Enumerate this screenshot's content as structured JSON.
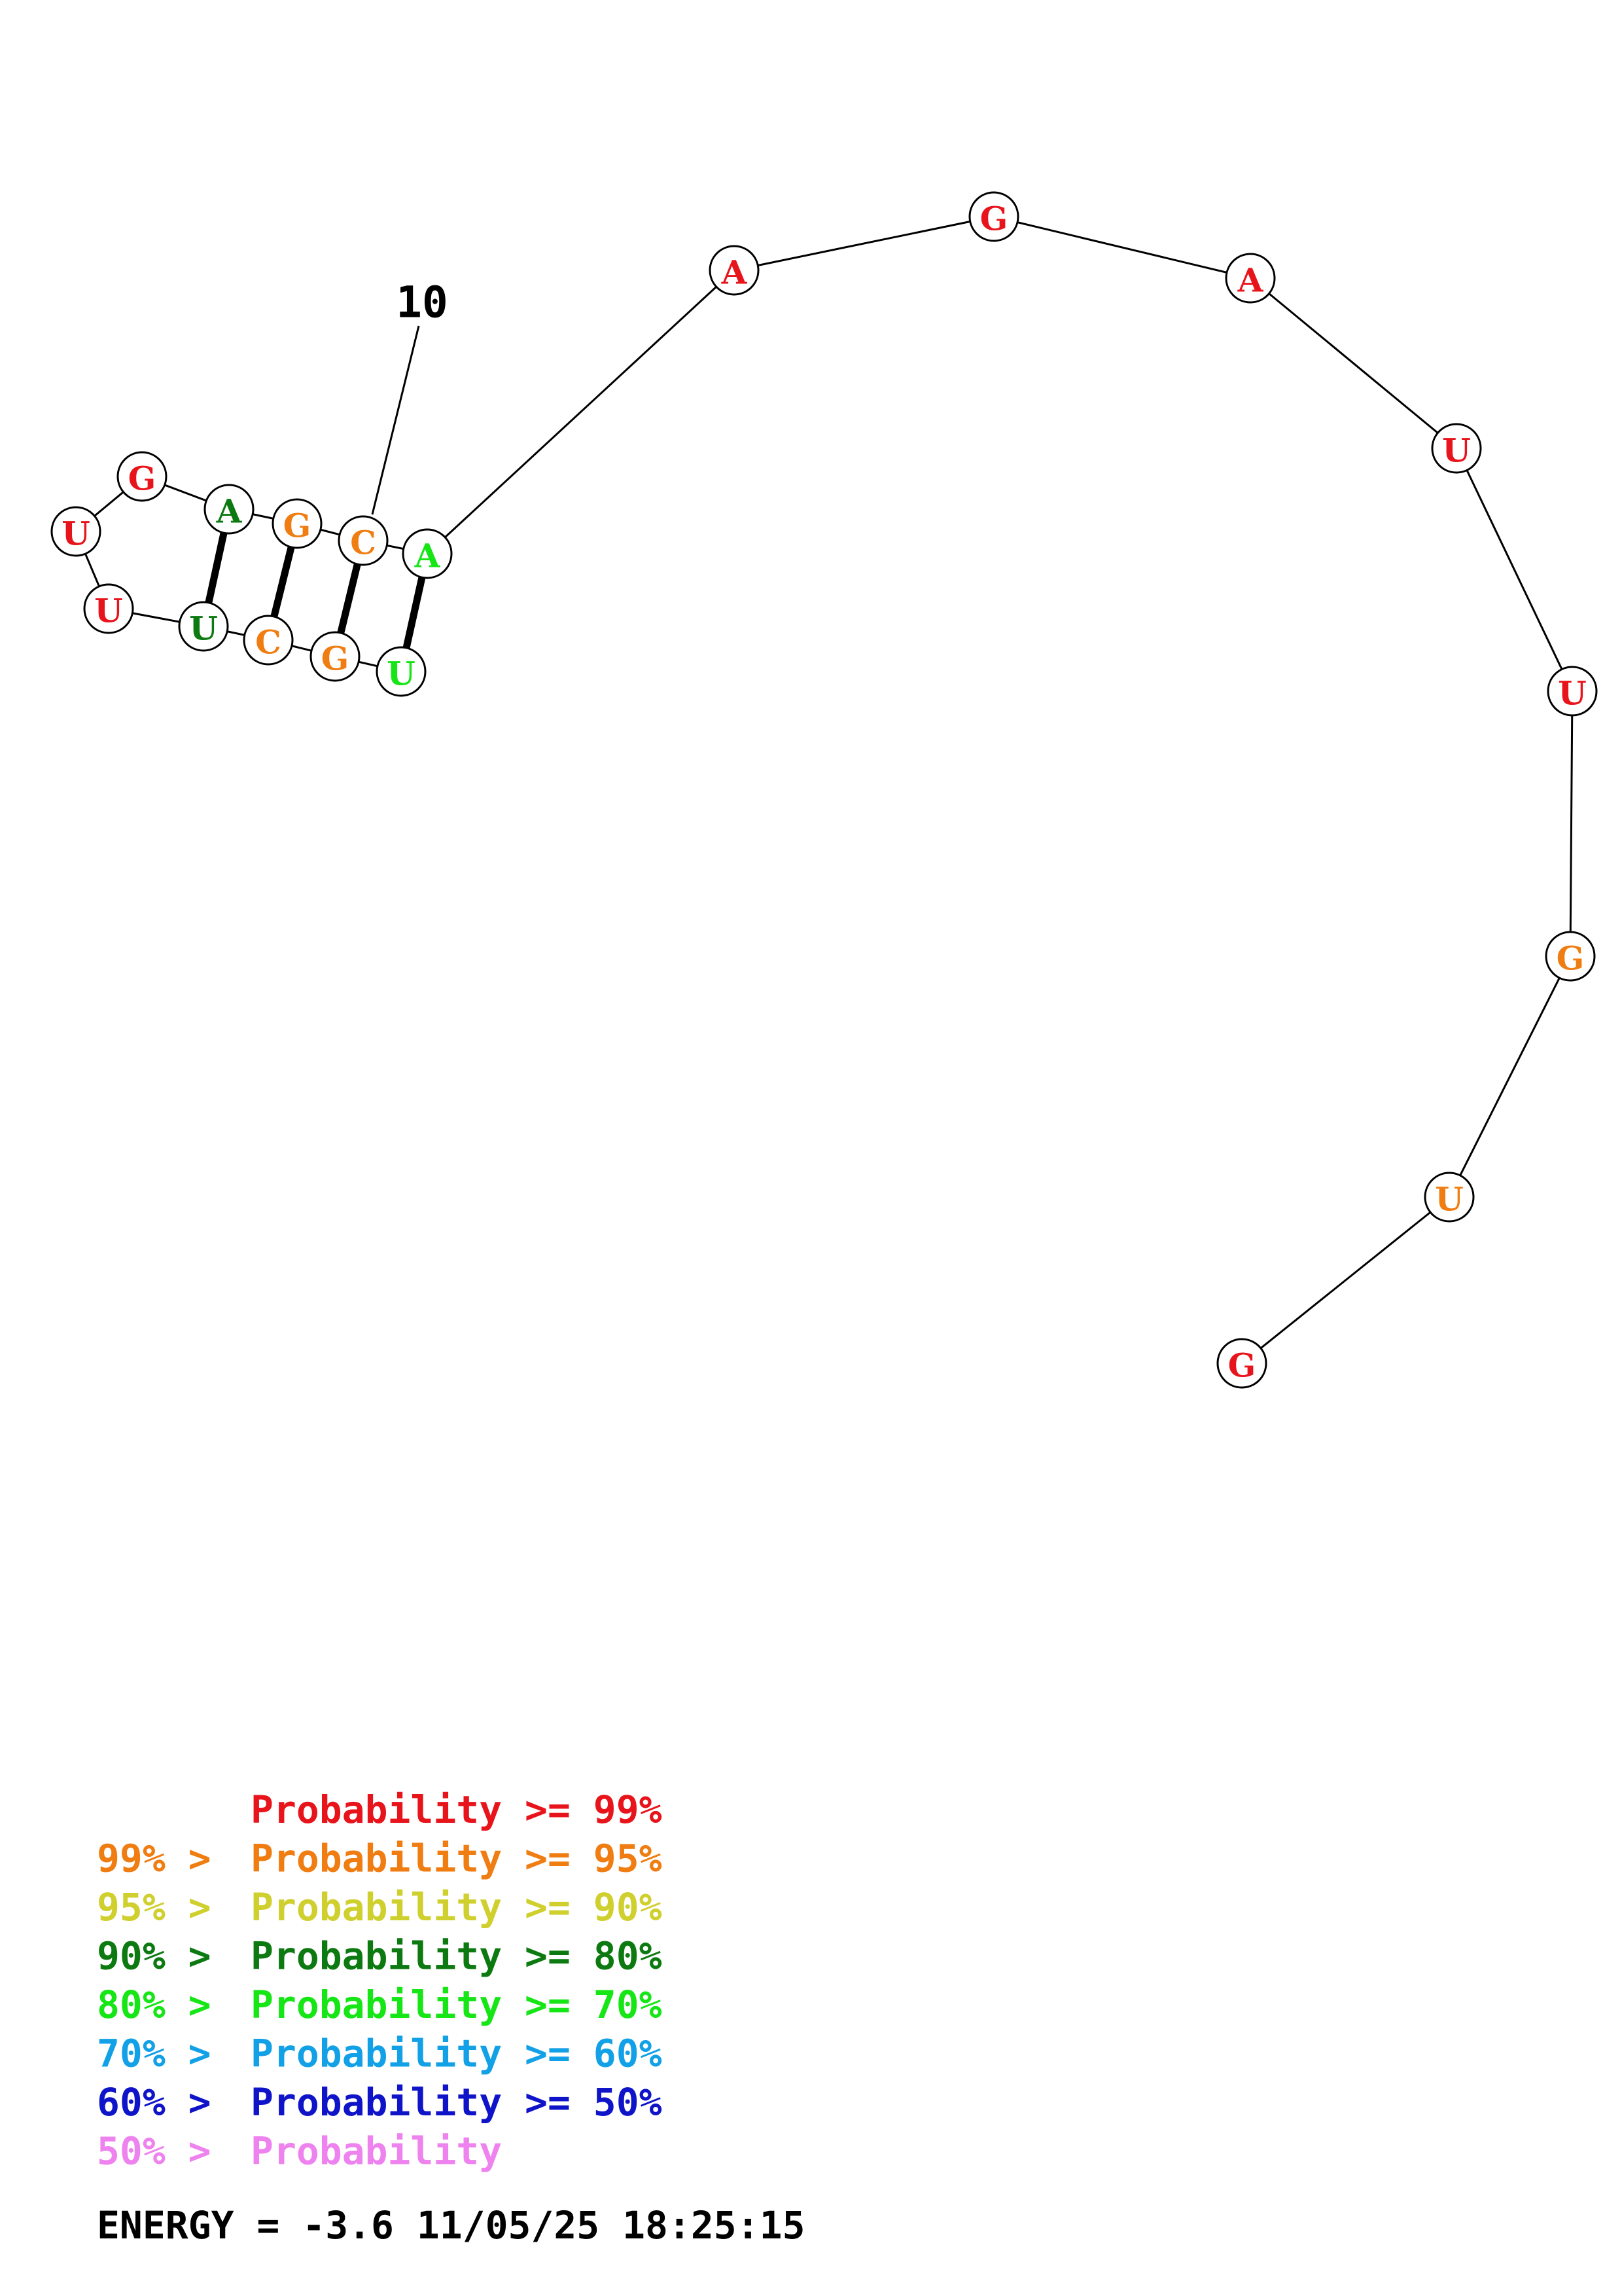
{
  "colors": {
    "p99": "#e8141c",
    "p95": "#f07d12",
    "p90": "#cfcf2e",
    "p80": "#0c7a10",
    "p70": "#16e616",
    "p60": "#12a0e6",
    "p50": "#0f14c8",
    "plow": "#ee82ee",
    "line": "#000000"
  },
  "structure": {
    "bases": [
      {
        "letter": "G",
        "color": "#e8141c"
      },
      {
        "letter": "U",
        "color": "#f07d12"
      },
      {
        "letter": "G",
        "color": "#f07d12"
      },
      {
        "letter": "U",
        "color": "#e8141c"
      },
      {
        "letter": "U",
        "color": "#e8141c"
      },
      {
        "letter": "A",
        "color": "#e8141c"
      },
      {
        "letter": "G",
        "color": "#e8141c"
      },
      {
        "letter": "A",
        "color": "#e8141c"
      },
      {
        "letter": "A",
        "color": "#16e616"
      },
      {
        "letter": "C",
        "color": "#f07d12"
      },
      {
        "letter": "G",
        "color": "#f07d12"
      },
      {
        "letter": "A",
        "color": "#0c7a10"
      },
      {
        "letter": "G",
        "color": "#e8141c"
      },
      {
        "letter": "U",
        "color": "#e8141c"
      },
      {
        "letter": "U",
        "color": "#e8141c"
      },
      {
        "letter": "U",
        "color": "#0c7a10"
      },
      {
        "letter": "C",
        "color": "#f07d12"
      },
      {
        "letter": "G",
        "color": "#f07d12"
      },
      {
        "letter": "U",
        "color": "#16e616"
      }
    ],
    "pairs": [
      [
        9,
        19
      ],
      [
        10,
        18
      ],
      [
        11,
        17
      ],
      [
        12,
        16
      ]
    ],
    "index_labels": [
      {
        "text": "10",
        "base": 10
      }
    ]
  },
  "legend": [
    {
      "prefix": "",
      "label": "Probability >= 99%",
      "color": "#e8141c"
    },
    {
      "prefix": "99% > ",
      "label": "Probability >= 95%",
      "color": "#f07d12"
    },
    {
      "prefix": "95% > ",
      "label": "Probability >= 90%",
      "color": "#cfcf2e"
    },
    {
      "prefix": "90% > ",
      "label": "Probability >= 80%",
      "color": "#0c7a10"
    },
    {
      "prefix": "80% > ",
      "label": "Probability >= 70%",
      "color": "#16e616"
    },
    {
      "prefix": "70% > ",
      "label": "Probability >= 60%",
      "color": "#12a0e6"
    },
    {
      "prefix": "60% > ",
      "label": "Probability >= 50%",
      "color": "#0f14c8"
    },
    {
      "prefix": "50% > ",
      "label": "Probability",
      "color": "#ee82ee"
    }
  ],
  "energy": {
    "text": "ENERGY = -3.6  11/05/25 18:25:15"
  }
}
